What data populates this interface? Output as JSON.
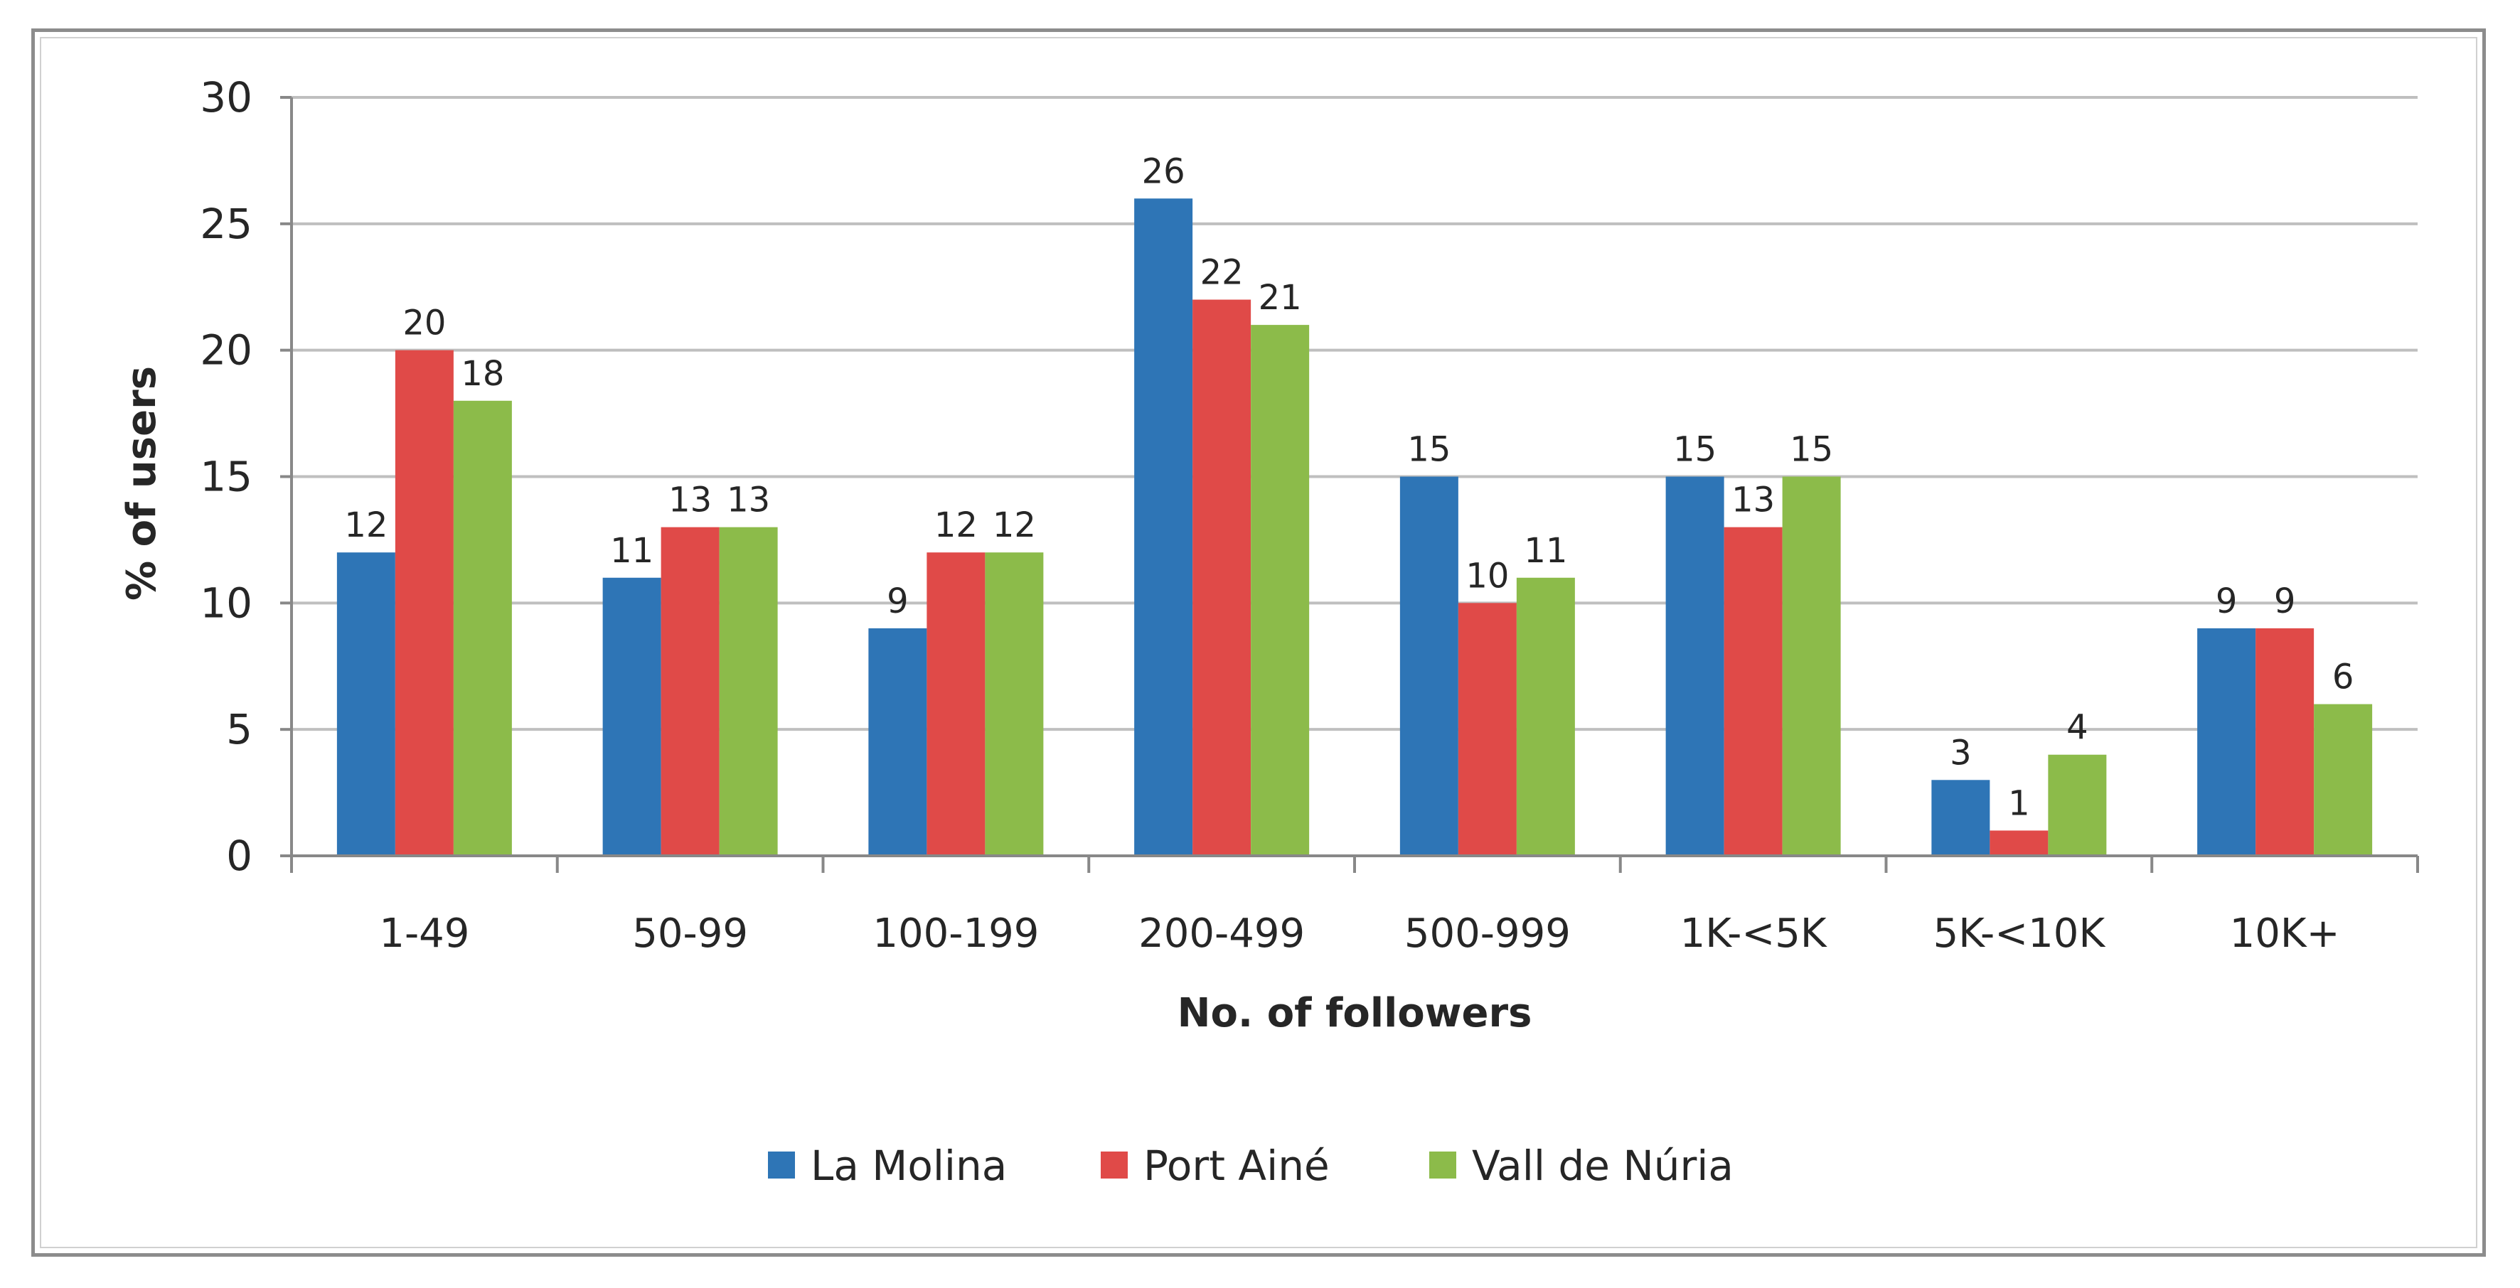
{
  "chart_data": {
    "type": "bar",
    "title": "",
    "xlabel": "No. of followers",
    "ylabel": "% of users",
    "ylim": [
      0,
      30
    ],
    "yticks": [
      0,
      5,
      10,
      15,
      20,
      25,
      30
    ],
    "grid": true,
    "legend_position": "bottom",
    "categories": [
      "1-49",
      "50-99",
      "100-199",
      "200-499",
      "500-999",
      "1K-<5K",
      "5K-<10K",
      "10K+"
    ],
    "series": [
      {
        "name": "La Molina",
        "color": "#2e75b6",
        "values": [
          12,
          11,
          9,
          26,
          15,
          15,
          3,
          9
        ]
      },
      {
        "name": "Port Ainé",
        "color": "#e04a48",
        "values": [
          20,
          13,
          12,
          22,
          10,
          13,
          1,
          9
        ]
      },
      {
        "name": "Vall de Núria",
        "color": "#8cbb4a",
        "values": [
          18,
          13,
          12,
          21,
          11,
          15,
          4,
          6
        ]
      }
    ]
  }
}
